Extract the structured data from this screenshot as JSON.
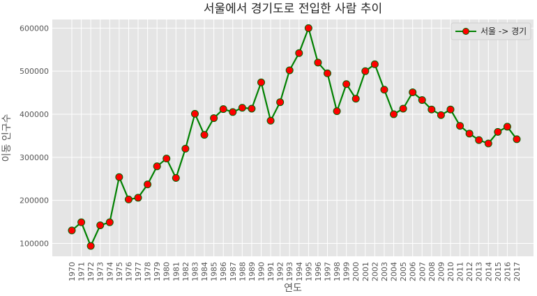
{
  "chart_data": {
    "type": "line",
    "title": "서울에서 경기도로 전입한 사람 추이",
    "xlabel": "연도",
    "ylabel": "이동 인구수",
    "ylim": [
      70000,
      620000
    ],
    "yticks": [
      100000,
      200000,
      300000,
      400000,
      500000,
      600000
    ],
    "ytick_labels": [
      "100000",
      "200000",
      "300000",
      "400000",
      "500000",
      "600000"
    ],
    "grid": true,
    "legend": "top-right",
    "categories": [
      "1970",
      "1971",
      "1972",
      "1973",
      "1974",
      "1975",
      "1976",
      "1977",
      "1978",
      "1979",
      "1980",
      "1981",
      "1982",
      "1983",
      "1984",
      "1985",
      "1986",
      "1987",
      "1988",
      "1989",
      "1990",
      "1991",
      "1992",
      "1993",
      "1994",
      "1995",
      "1996",
      "1997",
      "1998",
      "1999",
      "2000",
      "2001",
      "2002",
      "2003",
      "2004",
      "2005",
      "2006",
      "2007",
      "2008",
      "2009",
      "2010",
      "2011",
      "2012",
      "2013",
      "2014",
      "2015",
      "2016",
      "2017"
    ],
    "series": [
      {
        "name": "서울 -> 경기",
        "line_color": "#008000",
        "marker_face": "#ff0000",
        "marker_edge": "#006400",
        "values": [
          130000,
          149000,
          94000,
          142000,
          149000,
          254000,
          202000,
          206000,
          237000,
          279000,
          297000,
          252000,
          320000,
          401000,
          352000,
          391000,
          412000,
          405000,
          415000,
          413000,
          474000,
          385000,
          428000,
          502000,
          542000,
          600000,
          520000,
          495000,
          407000,
          470000,
          436000,
          500000,
          516000,
          457000,
          400000,
          413000,
          451000,
          433000,
          411000,
          398000,
          411000,
          373000,
          355000,
          340000,
          332000,
          359000,
          371000,
          342000
        ]
      }
    ]
  },
  "colors": {
    "plot_bg": "#e5e5e5",
    "grid": "#ffffff"
  }
}
